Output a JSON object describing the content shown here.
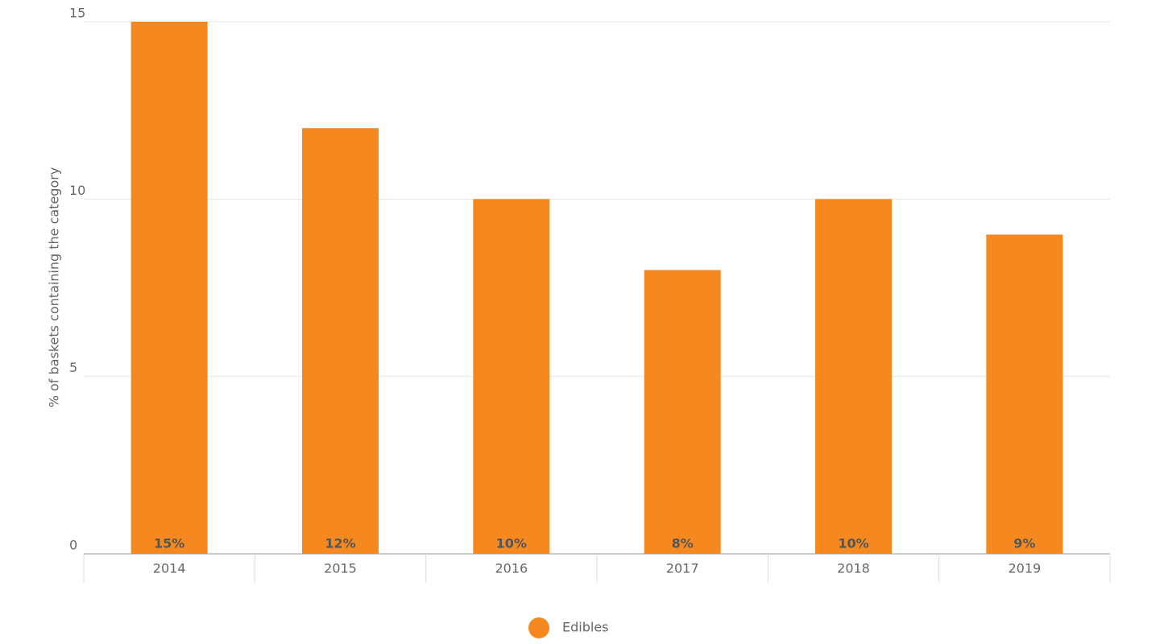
{
  "chart_data": {
    "type": "bar",
    "y_axis_label": "% of baskets containing the category",
    "categories": [
      "2014",
      "2015",
      "2016",
      "2017",
      "2018",
      "2019"
    ],
    "series": [
      {
        "name": "Edibles",
        "color": "#f5891f",
        "values": [
          15,
          12,
          10,
          8,
          10,
          9
        ],
        "value_labels": [
          "15%",
          "12%",
          "10%",
          "8%",
          "10%",
          "9%"
        ]
      }
    ],
    "ylim": [
      0,
      15
    ],
    "yticks": [
      0,
      5,
      10,
      15
    ],
    "grid": true,
    "legend": "bottom"
  }
}
